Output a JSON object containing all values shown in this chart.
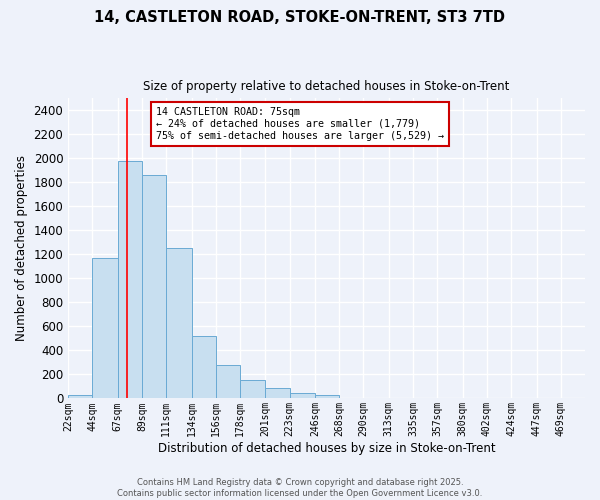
{
  "title_line1": "14, CASTLETON ROAD, STOKE-ON-TRENT, ST3 7TD",
  "title_line2": "Size of property relative to detached houses in Stoke-on-Trent",
  "xlabel": "Distribution of detached houses by size in Stoke-on-Trent",
  "ylabel": "Number of detached properties",
  "bin_labels": [
    "22sqm",
    "44sqm",
    "67sqm",
    "89sqm",
    "111sqm",
    "134sqm",
    "156sqm",
    "178sqm",
    "201sqm",
    "223sqm",
    "246sqm",
    "268sqm",
    "290sqm",
    "313sqm",
    "335sqm",
    "357sqm",
    "380sqm",
    "402sqm",
    "424sqm",
    "447sqm",
    "469sqm"
  ],
  "bin_edges": [
    22,
    44,
    67,
    89,
    111,
    134,
    156,
    178,
    201,
    223,
    246,
    268,
    290,
    313,
    335,
    357,
    380,
    402,
    424,
    447,
    469,
    491
  ],
  "bar_heights": [
    30,
    1170,
    1980,
    1860,
    1250,
    520,
    275,
    150,
    90,
    45,
    30,
    5,
    0,
    0,
    0,
    0,
    0,
    0,
    0,
    0,
    0
  ],
  "bar_facecolor": "#c8dff0",
  "bar_edgecolor": "#6aaad4",
  "red_line_x": 75,
  "annotation_text": "14 CASTLETON ROAD: 75sqm\n← 24% of detached houses are smaller (1,779)\n75% of semi-detached houses are larger (5,529) →",
  "annotation_box_edgecolor": "#cc0000",
  "annotation_box_facecolor": "#ffffff",
  "ylim": [
    0,
    2500
  ],
  "yticks": [
    0,
    200,
    400,
    600,
    800,
    1000,
    1200,
    1400,
    1600,
    1800,
    2000,
    2200,
    2400
  ],
  "background_color": "#eef2fa",
  "grid_color": "#ffffff",
  "footer_line1": "Contains HM Land Registry data © Crown copyright and database right 2025.",
  "footer_line2": "Contains public sector information licensed under the Open Government Licence v3.0."
}
